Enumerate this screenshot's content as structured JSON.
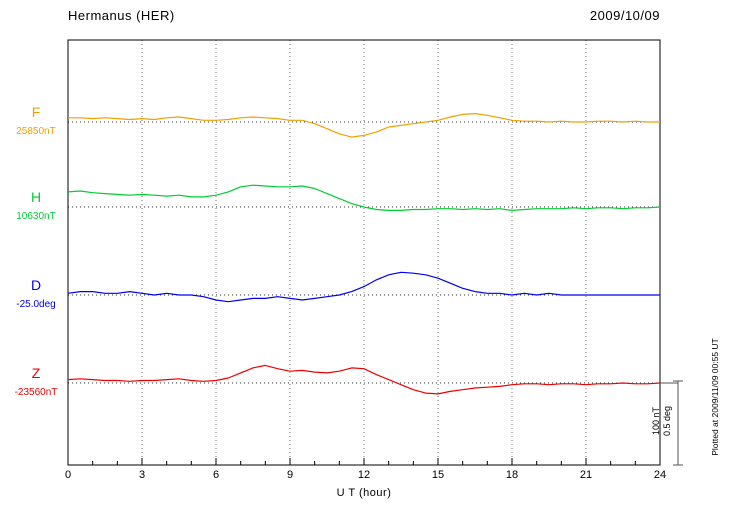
{
  "header": {
    "title": "Hermanus (HER)",
    "date": "2009/10/09"
  },
  "chart_data": {
    "type": "line",
    "station": "Hermanus (HER)",
    "date": "2009/10/09",
    "xlabel": "U T (hour)",
    "x_ticks": [
      0,
      3,
      6,
      9,
      12,
      15,
      18,
      21,
      24
    ],
    "x_range": [
      0,
      24
    ],
    "x_start": 0,
    "x_step": 0.5,
    "grid": "vertical-dotted-every-3h",
    "legend_position": "left-of-each-trace",
    "scale_bar": {
      "nT_label": "100 nT",
      "deg_label": "0.5 deg",
      "nT": 100,
      "deg": 0.5
    },
    "plotted_at": "Plotted at 2009/11/09 00:55 UT",
    "series": [
      {
        "name": "F",
        "unit": "nT",
        "baseline_label": "25850nT",
        "baseline_value": 25850,
        "color": "#f0a000",
        "offsets_from_baseline": [
          5,
          5,
          4,
          5,
          4,
          3,
          4,
          3,
          5,
          6,
          4,
          2,
          2,
          3,
          5,
          6,
          5,
          4,
          2,
          2,
          -2,
          -8,
          -14,
          -18,
          -16,
          -12,
          -6,
          -4,
          -2,
          0,
          2,
          6,
          9,
          10,
          8,
          5,
          2,
          1,
          1,
          0,
          1,
          0,
          0,
          1,
          1,
          0,
          1,
          0,
          0
        ]
      },
      {
        "name": "H",
        "unit": "nT",
        "baseline_label": "10630nT",
        "baseline_value": 10630,
        "color": "#00cc33",
        "offsets_from_baseline": [
          18,
          19,
          17,
          16,
          15,
          14,
          15,
          14,
          13,
          14,
          12,
          12,
          14,
          18,
          24,
          26,
          25,
          24,
          24,
          25,
          22,
          16,
          10,
          4,
          0,
          -3,
          -4,
          -4,
          -3,
          -3,
          -2,
          -2,
          -3,
          -2,
          -3,
          -2,
          -4,
          -3,
          -2,
          -2,
          -2,
          -1,
          -2,
          -1,
          -1,
          -2,
          -1,
          -1,
          0
        ]
      },
      {
        "name": "D",
        "unit": "deg",
        "baseline_label": "-25.0deg",
        "baseline_value": -25.0,
        "color": "#0000ee",
        "offsets_from_baseline": [
          0.01,
          0.02,
          0.02,
          0.01,
          0.01,
          0.02,
          0.01,
          0,
          0.01,
          0,
          0,
          -0.01,
          -0.03,
          -0.04,
          -0.03,
          -0.02,
          -0.02,
          -0.01,
          -0.02,
          -0.03,
          -0.02,
          -0.01,
          0,
          0.02,
          0.05,
          0.09,
          0.12,
          0.135,
          0.13,
          0.12,
          0.1,
          0.07,
          0.04,
          0.02,
          0.01,
          0.01,
          0,
          0.01,
          0,
          0.01,
          0,
          0,
          0,
          0,
          0,
          0,
          0,
          0,
          0
        ]
      },
      {
        "name": "Z",
        "unit": "nT",
        "baseline_label": "-23560nT",
        "baseline_value": -23560,
        "color": "#ee0000",
        "offsets_from_baseline": [
          4,
          5,
          4,
          3,
          3,
          2,
          3,
          3,
          4,
          5,
          3,
          2,
          3,
          6,
          12,
          18,
          21,
          17,
          14,
          15,
          13,
          12,
          14,
          18,
          17,
          10,
          4,
          -2,
          -8,
          -12,
          -13,
          -10,
          -8,
          -6,
          -5,
          -4,
          -2,
          -1,
          -1,
          -2,
          -1,
          -1,
          -2,
          -1,
          -1,
          0,
          -1,
          -1,
          0
        ]
      }
    ]
  }
}
